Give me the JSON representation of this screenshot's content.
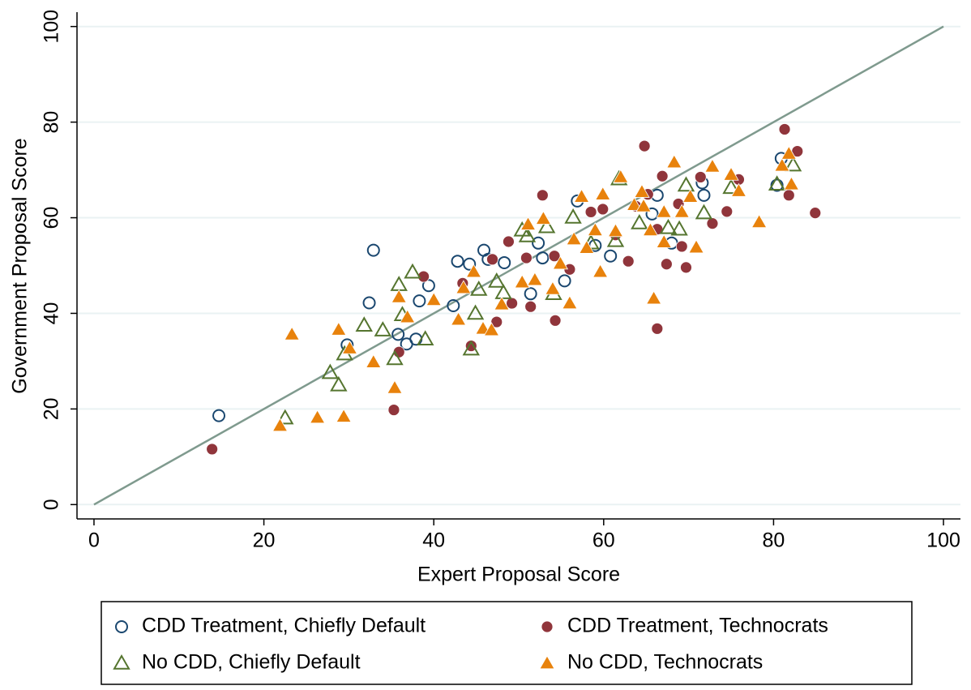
{
  "chart_data": {
    "type": "scatter",
    "x_label": "Expert Proposal Score",
    "y_label": "Government Proposal Score",
    "xlim": [
      -2,
      102
    ],
    "ylim": [
      -3,
      103
    ],
    "xticks": [
      0,
      20,
      40,
      60,
      80,
      100
    ],
    "yticks": [
      0,
      20,
      40,
      60,
      80,
      100
    ],
    "grid": true,
    "reference_line": {
      "x": [
        0,
        100
      ],
      "y": [
        0,
        100
      ],
      "color": "#7f9a8e"
    },
    "legend_position": "bottom",
    "series": [
      {
        "name": "CDD Treatment, Chiefly Default",
        "color": "#1a476f",
        "marker": "hollow-circle",
        "x": [
          14.7,
          29.8,
          32.4,
          32.9,
          35.8,
          36.8,
          37.9,
          38.3,
          39.4,
          42.3,
          42.8,
          44.2,
          45.9,
          46.4,
          48.3,
          51.4,
          52.3,
          52.8,
          55.4,
          56.9,
          60.8,
          65.7,
          66.3,
          71.6,
          71.8,
          80.4,
          80.9,
          59,
          68
        ],
        "values": [
          18.6,
          33.4,
          42.2,
          53.2,
          35.6,
          33.6,
          34.6,
          42.6,
          45.8,
          41.6,
          50.9,
          50.3,
          53.2,
          51.3,
          50.6,
          44.1,
          54.7,
          51.6,
          46.8,
          63.5,
          52,
          60.8,
          64.7,
          67.3,
          64.7,
          66.8,
          72.4,
          54.2,
          54.7
        ]
      },
      {
        "name": "CDD Treatment, Technocrats",
        "color": "#90353b",
        "marker": "filled-circle",
        "x": [
          13.9,
          35.3,
          35.9,
          38.8,
          43.4,
          44.4,
          46.9,
          47.4,
          48.8,
          49.2,
          50.9,
          51.4,
          52.8,
          54.2,
          54.3,
          56,
          58.5,
          59.9,
          62.9,
          63.8,
          64.8,
          66.3,
          66.3,
          66.9,
          67.4,
          68.8,
          69.2,
          69.7,
          71.4,
          72.8,
          74.5,
          75.9,
          81.3,
          81.8,
          82.8,
          84.9,
          65.2,
          61.4
        ],
        "values": [
          11.6,
          19.8,
          31.9,
          47.7,
          46.3,
          33.2,
          51.3,
          38.2,
          55,
          42.1,
          51.6,
          41.4,
          64.7,
          52,
          38.5,
          49.2,
          61.2,
          61.8,
          50.9,
          62.4,
          75,
          57.6,
          36.8,
          68.7,
          50.3,
          62.9,
          54,
          49.6,
          68.5,
          58.8,
          61.3,
          68,
          78.5,
          64.7,
          73.9,
          61,
          64.9,
          56.4
        ]
      },
      {
        "name": "No CDD, Chiefly Default",
        "color": "#55752f",
        "marker": "hollow-triangle",
        "x": [
          22.5,
          27.8,
          28.8,
          29.5,
          31.8,
          34,
          35.4,
          35.9,
          36.3,
          37.5,
          39,
          44.4,
          44.9,
          45.3,
          47.4,
          48.2,
          50.4,
          51,
          53.3,
          54.1,
          56.4,
          61.4,
          61.8,
          64.2,
          67.6,
          68.9,
          69.7,
          71.8,
          75,
          80.4,
          82.3,
          58.5
        ],
        "values": [
          18.1,
          27.6,
          25,
          31.5,
          37.5,
          36.5,
          30.5,
          46,
          39.7,
          48.6,
          34.6,
          32.5,
          40,
          45,
          46.7,
          44.3,
          57.4,
          56.2,
          58.1,
          44.1,
          60.1,
          55.2,
          68.1,
          58.9,
          57.9,
          57.6,
          66.8,
          61,
          66.3,
          67,
          71,
          54.7
        ]
      },
      {
        "name": "No CDD, Technocrats",
        "color": "#e8820c",
        "marker": "filled-triangle",
        "x": [
          21.9,
          23.3,
          26.3,
          28.8,
          29.4,
          30.1,
          32.9,
          35.4,
          35.9,
          36.9,
          40,
          42.9,
          43.5,
          44.7,
          45.8,
          46.8,
          48,
          50.4,
          51.1,
          51.9,
          52.9,
          54,
          54.9,
          56,
          56.5,
          57.4,
          58,
          59,
          59.6,
          59.9,
          61.4,
          62,
          63.6,
          64.5,
          65.5,
          65.9,
          67.1,
          68.3,
          69.2,
          70.2,
          70.9,
          72.8,
          75,
          75.9,
          78.3,
          81,
          82.1,
          81.8,
          64.7,
          67.1
        ],
        "values": [
          16.5,
          35.6,
          18.2,
          36.6,
          18.4,
          32.7,
          29.8,
          24.4,
          43.4,
          39.2,
          42.8,
          38.7,
          45.3,
          48.7,
          36.8,
          36.5,
          41.9,
          46.5,
          58.6,
          47,
          59.8,
          45.1,
          50.4,
          42.1,
          55.5,
          64.4,
          53.7,
          57.4,
          48.7,
          64.9,
          57.2,
          68.5,
          62.7,
          65.4,
          57.4,
          43.1,
          54.9,
          71.6,
          61.2,
          64.4,
          53.8,
          70.7,
          69,
          65.6,
          59.1,
          70.9,
          67,
          73.4,
          62.4,
          61.2
        ]
      }
    ]
  }
}
